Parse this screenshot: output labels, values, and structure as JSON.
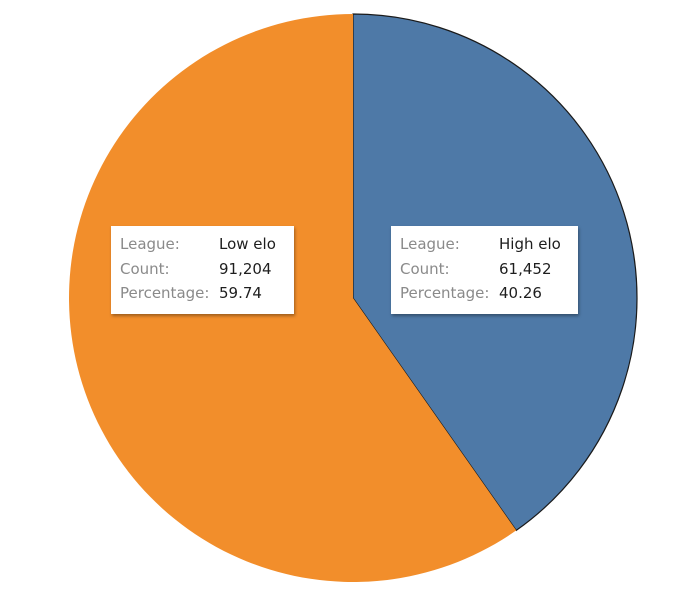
{
  "chart_data": {
    "type": "pie",
    "title": "",
    "field_labels": {
      "league": "League:",
      "count": "Count:",
      "percentage": "Percentage:"
    },
    "slices": [
      {
        "league": "High elo",
        "count": "61,452",
        "value": 61452,
        "percentage": "40.26",
        "color": "#4e79a7"
      },
      {
        "league": "Low elo",
        "count": "91,204",
        "value": 91204,
        "percentage": "59.74",
        "color": "#f28e2b"
      }
    ],
    "start_angle_deg": 0,
    "direction": "clockwise",
    "legend": "none"
  }
}
